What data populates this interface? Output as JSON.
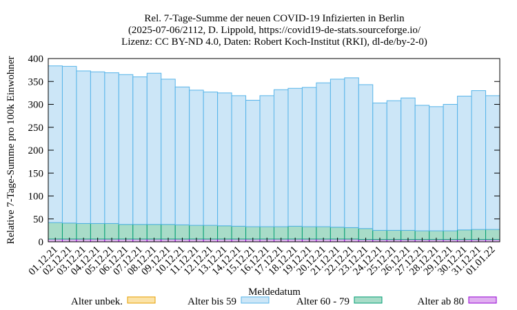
{
  "chart_data": {
    "type": "stacked_bar",
    "title": [
      "Rel. 7-Tage-Summe der neuen COVID-19 Infizierten in Berlin",
      "(2025-07-06/2112, D. Lippold, https://covid19-de-stats.sourceforge.io/",
      "Lizenz: CC BY-ND 4.0, Daten: Robert Koch-Institut (RKI), dl-de/by-2-0)"
    ],
    "x_label": "Meldedatum",
    "y_label": "Relative 7-Tage-Summe pro 100k Einwohner",
    "categories": [
      "01.12.21",
      "02.12.21",
      "03.12.21",
      "04.12.21",
      "05.12.21",
      "06.12.21",
      "07.12.21",
      "08.12.21",
      "09.12.21",
      "10.12.21",
      "11.12.21",
      "12.12.21",
      "13.12.21",
      "14.12.21",
      "15.12.21",
      "16.12.21",
      "17.12.21",
      "18.12.21",
      "19.12.21",
      "20.12.21",
      "21.12.21",
      "22.12.21",
      "23.12.21",
      "24.12.21",
      "25.12.21",
      "26.12.21",
      "27.12.21",
      "28.12.21",
      "29.12.21",
      "30.12.21",
      "31.12.21",
      "01.01.22"
    ],
    "series": [
      {
        "name": "Alter unbek.",
        "color": "#fbe3a8",
        "edge": "#e69f00",
        "values": [
          0,
          0,
          0,
          0,
          0,
          0,
          0,
          0,
          0,
          0,
          0,
          0,
          0,
          0,
          0,
          0,
          0,
          0,
          0,
          0,
          0,
          0,
          0,
          0,
          0,
          0,
          0,
          0,
          0,
          0,
          0,
          0
        ]
      },
      {
        "name": "Alter bis 59",
        "color": "#cce6f7",
        "edge": "#56b4e9",
        "values": [
          342,
          342,
          333,
          331,
          329,
          327,
          322,
          330,
          317,
          301,
          295,
          291,
          290,
          285,
          276,
          286,
          299,
          301,
          304,
          314,
          323,
          327,
          314,
          278,
          283,
          289,
          274,
          271,
          276,
          292,
          303,
          292
        ]
      },
      {
        "name": "Alter 60 - 79",
        "color": "#a8dcc8",
        "edge": "#009e73",
        "values": [
          36,
          35,
          34,
          34,
          34,
          32,
          32,
          32,
          32,
          31,
          30,
          30,
          29,
          28,
          27,
          27,
          27,
          28,
          27,
          27,
          26,
          25,
          24,
          20,
          20,
          20,
          19,
          19,
          19,
          21,
          22,
          22
        ]
      },
      {
        "name": "Alter ab 80",
        "color": "#e0b0f0",
        "edge": "#9400d3",
        "values": [
          6,
          6,
          6,
          6,
          6,
          6,
          6,
          6,
          6,
          6,
          6,
          6,
          6,
          6,
          6,
          6,
          6,
          6,
          6,
          6,
          6,
          6,
          5,
          5,
          5,
          5,
          5,
          5,
          5,
          5,
          5,
          5
        ]
      }
    ],
    "ylim": [
      0,
      400
    ],
    "yticks": [
      0,
      50,
      100,
      150,
      200,
      250,
      300,
      350,
      400
    ]
  }
}
